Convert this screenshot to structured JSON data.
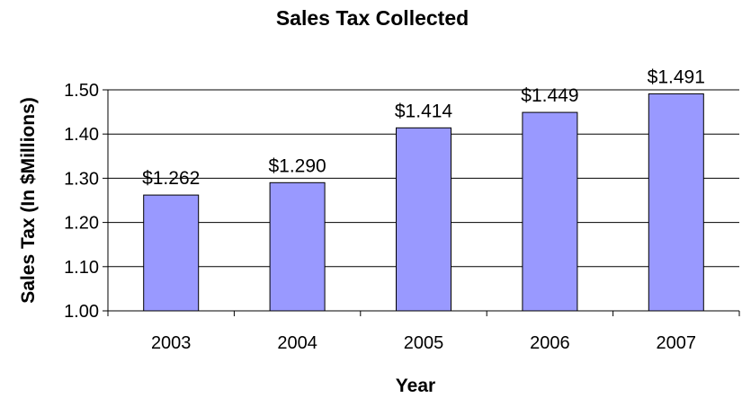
{
  "chart_data": {
    "type": "bar",
    "title": "Sales Tax Collected",
    "xlabel": "Year",
    "ylabel": "Sales Tax (In $Millions)",
    "categories": [
      "2003",
      "2004",
      "2005",
      "2006",
      "2007"
    ],
    "values": [
      1.262,
      1.29,
      1.414,
      1.449,
      1.491
    ],
    "data_labels": [
      "$1.262",
      "$1.290",
      "$1.414",
      "$1.449",
      "$1.491"
    ],
    "ylim": [
      1.0,
      1.5
    ],
    "yticks": [
      "1.00",
      "1.10",
      "1.20",
      "1.30",
      "1.40",
      "1.50"
    ],
    "grid": true,
    "legend": "none",
    "colors": {
      "bar_fill": "#9999ff",
      "bar_stroke": "#000000",
      "grid": "#000000",
      "axis": "#000000"
    }
  }
}
